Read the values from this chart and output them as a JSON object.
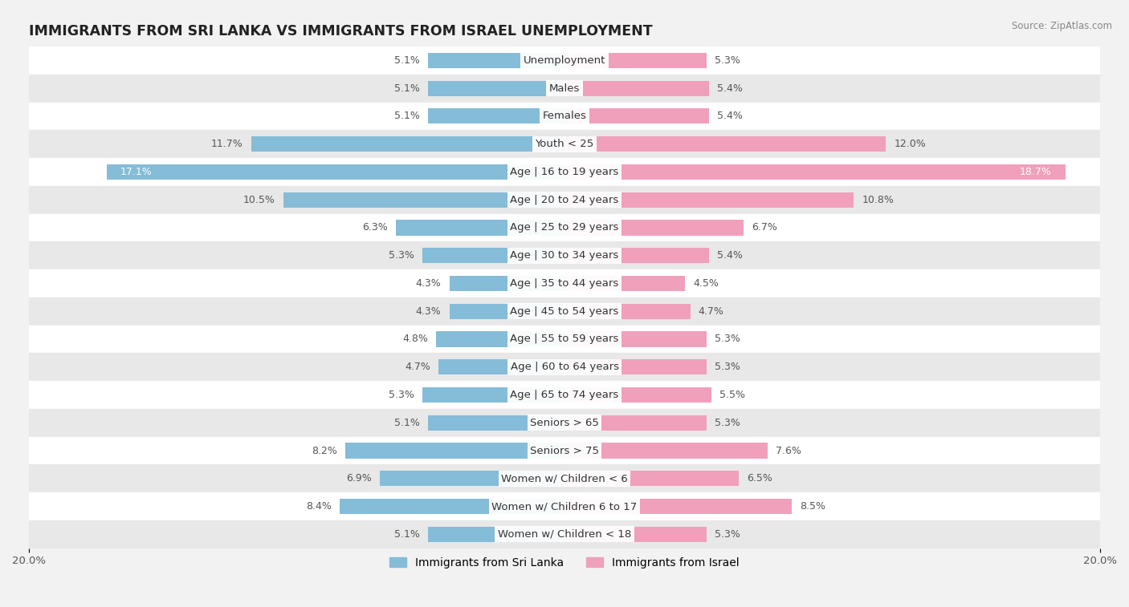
{
  "title": "IMMIGRANTS FROM SRI LANKA VS IMMIGRANTS FROM ISRAEL UNEMPLOYMENT",
  "source": "Source: ZipAtlas.com",
  "categories": [
    "Unemployment",
    "Males",
    "Females",
    "Youth < 25",
    "Age | 16 to 19 years",
    "Age | 20 to 24 years",
    "Age | 25 to 29 years",
    "Age | 30 to 34 years",
    "Age | 35 to 44 years",
    "Age | 45 to 54 years",
    "Age | 55 to 59 years",
    "Age | 60 to 64 years",
    "Age | 65 to 74 years",
    "Seniors > 65",
    "Seniors > 75",
    "Women w/ Children < 6",
    "Women w/ Children 6 to 17",
    "Women w/ Children < 18"
  ],
  "sri_lanka": [
    5.1,
    5.1,
    5.1,
    11.7,
    17.1,
    10.5,
    6.3,
    5.3,
    4.3,
    4.3,
    4.8,
    4.7,
    5.3,
    5.1,
    8.2,
    6.9,
    8.4,
    5.1
  ],
  "israel": [
    5.3,
    5.4,
    5.4,
    12.0,
    18.7,
    10.8,
    6.7,
    5.4,
    4.5,
    4.7,
    5.3,
    5.3,
    5.5,
    5.3,
    7.6,
    6.5,
    8.5,
    5.3
  ],
  "sri_lanka_color": "#85bcd8",
  "israel_color": "#f0a0bb",
  "background_color": "#f2f2f2",
  "row_color_light": "#ffffff",
  "row_color_dark": "#e8e8e8",
  "axis_limit": 20.0,
  "bar_height": 0.55,
  "label_fontsize": 9.0,
  "category_fontsize": 9.5,
  "title_fontsize": 12.5,
  "legend_fontsize": 10,
  "value_color_normal": "#555555",
  "value_color_highlight": "#ffffff"
}
